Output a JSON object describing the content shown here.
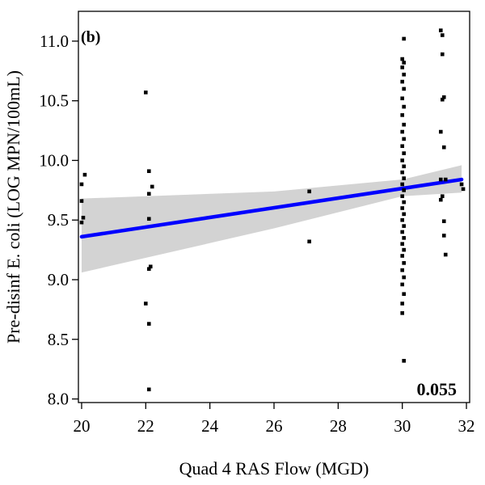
{
  "chart_data": {
    "type": "scatter",
    "panel_label": "(b)",
    "annotation": "0.055",
    "xlabel": "Quad 4 RAS Flow (MGD)",
    "ylabel": "Pre-disinf E. coli (LOG MPN/100mL)",
    "xlim": [
      19.9,
      32.1
    ],
    "ylim": [
      7.97,
      11.25
    ],
    "x_ticks": [
      20,
      22,
      24,
      26,
      28,
      30,
      32
    ],
    "x_tick_labels": [
      "20",
      "22",
      "24",
      "26",
      "28",
      "30",
      "32"
    ],
    "y_ticks": [
      8.0,
      8.5,
      9.0,
      9.5,
      10.0,
      10.5,
      11.0
    ],
    "y_tick_labels": [
      "8.0",
      "8.5",
      "9.0",
      "9.5",
      "10.0",
      "10.5",
      "11.0"
    ],
    "grid": false,
    "colors": {
      "points": "#000000",
      "fit_line": "#0000ff",
      "confidence_band": "#d3d3d3"
    },
    "fit_line": {
      "x": [
        20.0,
        31.85
      ],
      "y": [
        9.36,
        9.84
      ]
    },
    "confidence_band": {
      "x": [
        20.0,
        26.0,
        30.0,
        31.85
      ],
      "upper": [
        9.68,
        9.74,
        9.84,
        9.96
      ],
      "lower": [
        9.06,
        9.43,
        9.7,
        9.73
      ]
    },
    "points": [
      {
        "x": 20.0,
        "y": 9.48
      },
      {
        "x": 20.0,
        "y": 9.8
      },
      {
        "x": 20.0,
        "y": 9.66
      },
      {
        "x": 20.05,
        "y": 9.52
      },
      {
        "x": 20.1,
        "y": 9.88
      },
      {
        "x": 22.0,
        "y": 10.57
      },
      {
        "x": 22.1,
        "y": 9.91
      },
      {
        "x": 22.1,
        "y": 9.72
      },
      {
        "x": 22.2,
        "y": 9.78
      },
      {
        "x": 22.1,
        "y": 9.51
      },
      {
        "x": 22.15,
        "y": 9.11
      },
      {
        "x": 22.1,
        "y": 9.09
      },
      {
        "x": 22.0,
        "y": 8.8
      },
      {
        "x": 22.1,
        "y": 8.63
      },
      {
        "x": 22.1,
        "y": 8.08
      },
      {
        "x": 27.1,
        "y": 9.74
      },
      {
        "x": 27.1,
        "y": 9.32
      },
      {
        "x": 30.05,
        "y": 11.02
      },
      {
        "x": 30.0,
        "y": 10.85
      },
      {
        "x": 30.05,
        "y": 10.82
      },
      {
        "x": 30.0,
        "y": 10.78
      },
      {
        "x": 30.05,
        "y": 10.72
      },
      {
        "x": 30.0,
        "y": 10.66
      },
      {
        "x": 30.05,
        "y": 10.6
      },
      {
        "x": 30.0,
        "y": 10.52
      },
      {
        "x": 30.05,
        "y": 10.45
      },
      {
        "x": 30.0,
        "y": 10.38
      },
      {
        "x": 30.05,
        "y": 10.3
      },
      {
        "x": 30.0,
        "y": 10.24
      },
      {
        "x": 30.05,
        "y": 10.18
      },
      {
        "x": 30.0,
        "y": 10.12
      },
      {
        "x": 30.05,
        "y": 10.06
      },
      {
        "x": 30.0,
        "y": 10.0
      },
      {
        "x": 30.05,
        "y": 9.95
      },
      {
        "x": 30.0,
        "y": 9.9
      },
      {
        "x": 30.05,
        "y": 9.85
      },
      {
        "x": 30.0,
        "y": 9.8
      },
      {
        "x": 30.05,
        "y": 9.75
      },
      {
        "x": 30.0,
        "y": 9.7
      },
      {
        "x": 30.05,
        "y": 9.65
      },
      {
        "x": 30.0,
        "y": 9.6
      },
      {
        "x": 30.05,
        "y": 9.55
      },
      {
        "x": 30.0,
        "y": 9.5
      },
      {
        "x": 30.05,
        "y": 9.45
      },
      {
        "x": 30.0,
        "y": 9.4
      },
      {
        "x": 30.05,
        "y": 9.35
      },
      {
        "x": 30.0,
        "y": 9.3
      },
      {
        "x": 30.05,
        "y": 9.25
      },
      {
        "x": 30.0,
        "y": 9.2
      },
      {
        "x": 30.05,
        "y": 9.14
      },
      {
        "x": 30.0,
        "y": 9.08
      },
      {
        "x": 30.05,
        "y": 9.02
      },
      {
        "x": 30.0,
        "y": 8.96
      },
      {
        "x": 30.05,
        "y": 8.88
      },
      {
        "x": 30.0,
        "y": 8.8
      },
      {
        "x": 30.0,
        "y": 8.72
      },
      {
        "x": 30.05,
        "y": 8.32
      },
      {
        "x": 31.2,
        "y": 11.09
      },
      {
        "x": 31.25,
        "y": 11.05
      },
      {
        "x": 31.25,
        "y": 10.89
      },
      {
        "x": 31.3,
        "y": 10.53
      },
      {
        "x": 31.25,
        "y": 10.51
      },
      {
        "x": 31.2,
        "y": 10.24
      },
      {
        "x": 31.3,
        "y": 10.11
      },
      {
        "x": 31.2,
        "y": 9.84
      },
      {
        "x": 31.35,
        "y": 9.84
      },
      {
        "x": 31.25,
        "y": 9.7
      },
      {
        "x": 31.2,
        "y": 9.67
      },
      {
        "x": 31.3,
        "y": 9.49
      },
      {
        "x": 31.3,
        "y": 9.37
      },
      {
        "x": 31.35,
        "y": 9.21
      },
      {
        "x": 31.85,
        "y": 9.8
      },
      {
        "x": 31.9,
        "y": 9.76
      }
    ]
  }
}
